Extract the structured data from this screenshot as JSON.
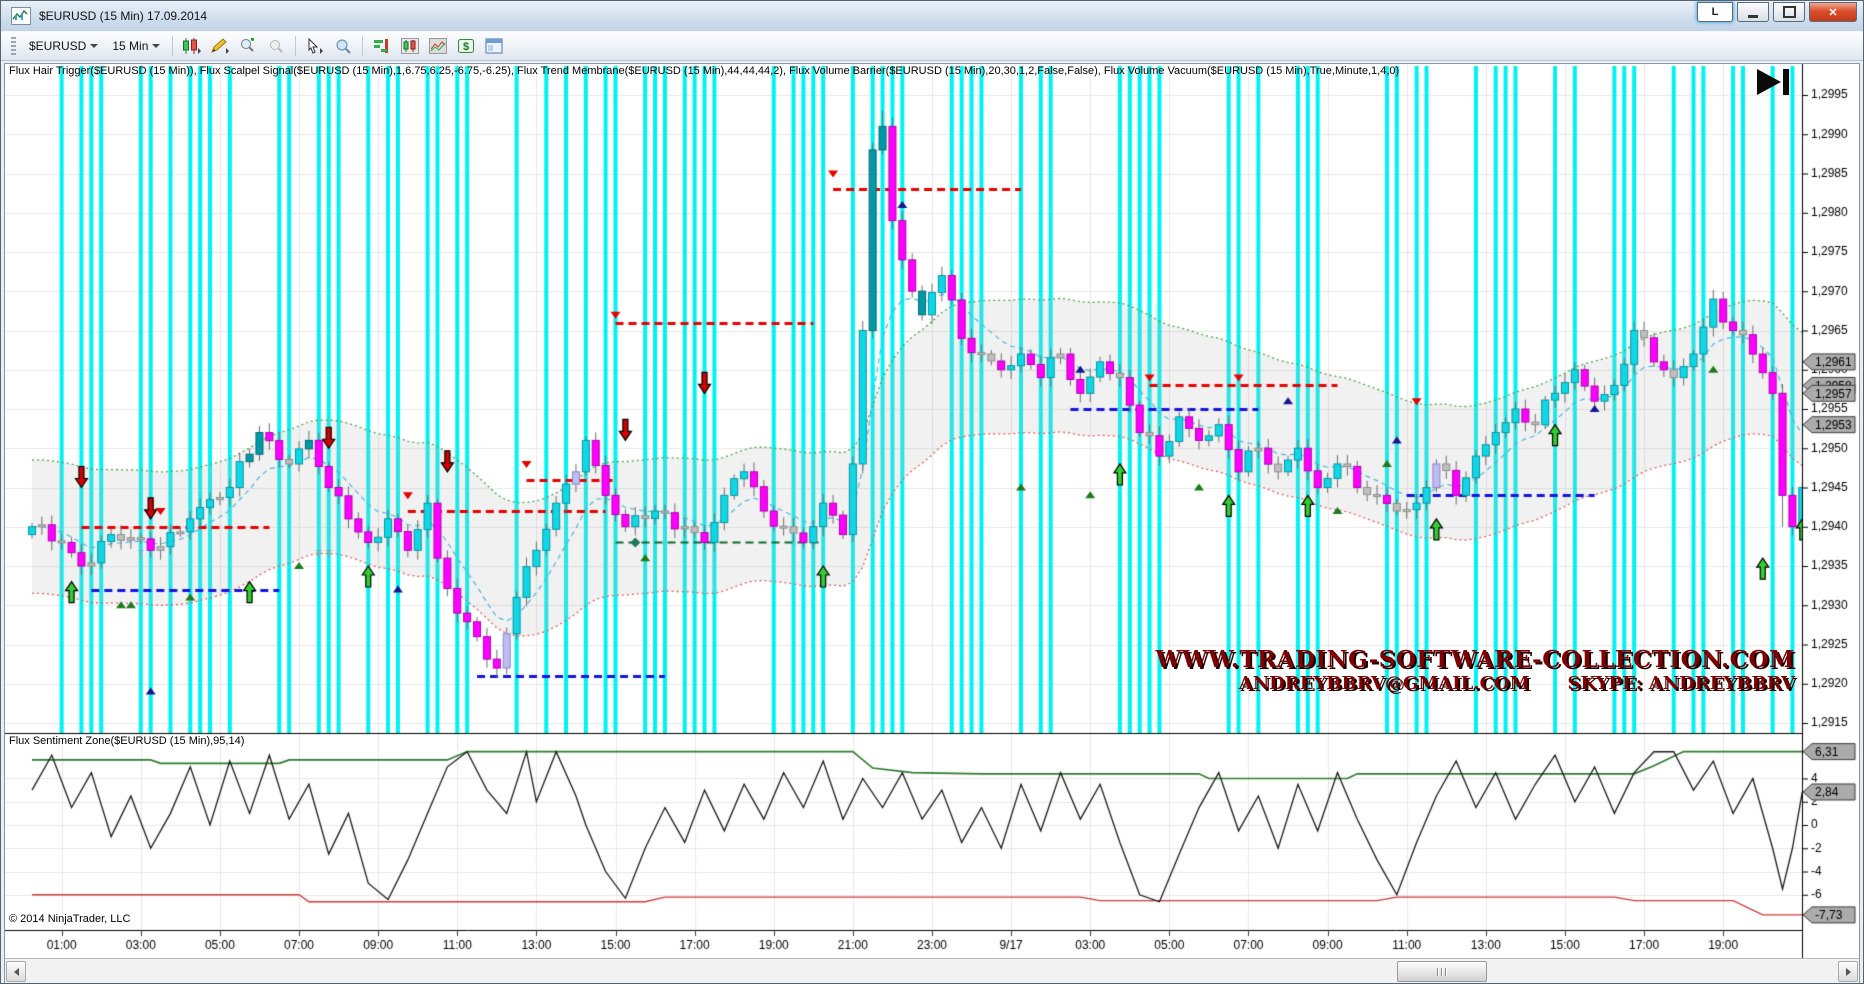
{
  "window": {
    "title": "$EURUSD (15 Min)  17.09.2014",
    "link_button": "L"
  },
  "toolbar": {
    "instrument": "$EURUSD",
    "interval": "15 Min"
  },
  "labels": {
    "indicators": "Flux Hair Trigger($EURUSD (15 Min)), Flux Scalpel Signal($EURUSD (15 Min),1,6.75,6.25,-6.75,-6.25), Flux Trend Membrane($EURUSD (15 Min),44,44,44,2), Flux Volume Barrier($EURUSD (15 Min),20,30,1,2,False,False), Flux Volume Vacuum($EURUSD (15 Min),True,Minute,1,4,0)",
    "subpanel": "Flux Sentiment Zone($EURUSD (15 Min),95,14)",
    "copyright": "© 2014 NinjaTrader, LLC"
  },
  "watermark": {
    "line1": "WWW.TRADING-SOFTWARE-COLLECTION.COM",
    "line2_left": "ANDREYBBRV@GMAIL.COM",
    "line2_right": "SKYPE: ANDREYBBRV"
  },
  "chart_data": {
    "type": "candlestick",
    "instrument": "$EURUSD",
    "interval": "15 Min",
    "bars": 180,
    "price_ticks": [
      [
        "1,2995",
        1.2995
      ],
      [
        "1,2990",
        1.299
      ],
      [
        "1,2985",
        1.2985
      ],
      [
        "1,2980",
        1.298
      ],
      [
        "1,2975",
        1.2975
      ],
      [
        "1,2970",
        1.297
      ],
      [
        "1,2965",
        1.2965
      ],
      [
        "1,2960",
        1.296
      ],
      [
        "1,2955",
        1.2955
      ],
      [
        "1,2950",
        1.295
      ],
      [
        "1,2945",
        1.2945
      ],
      [
        "1,2940",
        1.294
      ],
      [
        "1,2935",
        1.2935
      ],
      [
        "1,2930",
        1.293
      ],
      [
        "1,2925",
        1.2925
      ],
      [
        "1,2920",
        1.292
      ],
      [
        "1,2915",
        1.2915
      ]
    ],
    "axis_boxes_main": [
      [
        "1,2961",
        1.2961
      ],
      [
        "1,2958",
        1.2958
      ],
      [
        "1,2957",
        1.2957
      ],
      [
        "1,2953",
        1.2953
      ]
    ],
    "time_labels": [
      "01:00",
      "03:00",
      "05:00",
      "07:00",
      "09:00",
      "11:00",
      "13:00",
      "15:00",
      "17:00",
      "19:00",
      "21:00",
      "23:00",
      "9/17",
      "03:00",
      "05:00",
      "07:00",
      "09:00",
      "11:00",
      "13:00",
      "15:00",
      "17:00",
      "19:00"
    ],
    "time_label_start_bar": 3,
    "time_label_step": 8,
    "close_anchors": [
      [
        0,
        1.294
      ],
      [
        3,
        1.2938
      ],
      [
        5,
        1.2935
      ],
      [
        8,
        1.2939
      ],
      [
        12,
        1.2937
      ],
      [
        16,
        1.2941
      ],
      [
        20,
        1.2945
      ],
      [
        23,
        1.2952
      ],
      [
        26,
        1.2948
      ],
      [
        28,
        1.2951
      ],
      [
        30,
        1.2945
      ],
      [
        32,
        1.2941
      ],
      [
        34,
        1.2938
      ],
      [
        36,
        1.2941
      ],
      [
        38,
        1.2937
      ],
      [
        40,
        1.2943
      ],
      [
        41,
        1.2936
      ],
      [
        43,
        1.2929
      ],
      [
        45,
        1.2926
      ],
      [
        47,
        1.2922
      ],
      [
        49,
        1.2931
      ],
      [
        51,
        1.2937
      ],
      [
        53,
        1.2943
      ],
      [
        55,
        1.2947
      ],
      [
        56,
        1.2951
      ],
      [
        58,
        1.2944
      ],
      [
        60,
        1.294
      ],
      [
        63,
        1.2942
      ],
      [
        66,
        1.294
      ],
      [
        68,
        1.2938
      ],
      [
        70,
        1.2944
      ],
      [
        72,
        1.2947
      ],
      [
        74,
        1.2942
      ],
      [
        76,
        1.294
      ],
      [
        78,
        1.2938
      ],
      [
        80,
        1.2943
      ],
      [
        82,
        1.2939
      ],
      [
        83,
        1.2948
      ],
      [
        84,
        1.2965
      ],
      [
        85,
        1.2988
      ],
      [
        86,
        1.2991
      ],
      [
        87,
        1.2979
      ],
      [
        88,
        1.2974
      ],
      [
        90,
        1.2967
      ],
      [
        92,
        1.2972
      ],
      [
        94,
        1.2964
      ],
      [
        96,
        1.2962
      ],
      [
        98,
        1.296
      ],
      [
        100,
        1.2962
      ],
      [
        102,
        1.2959
      ],
      [
        104,
        1.2962
      ],
      [
        106,
        1.2957
      ],
      [
        108,
        1.2961
      ],
      [
        110,
        1.2959
      ],
      [
        112,
        1.2952
      ],
      [
        114,
        1.2949
      ],
      [
        116,
        1.2954
      ],
      [
        118,
        1.2951
      ],
      [
        120,
        1.2953
      ],
      [
        122,
        1.2947
      ],
      [
        124,
        1.295
      ],
      [
        126,
        1.2947
      ],
      [
        128,
        1.295
      ],
      [
        130,
        1.2945
      ],
      [
        132,
        1.2948
      ],
      [
        134,
        1.2945
      ],
      [
        136,
        1.2944
      ],
      [
        138,
        1.2942
      ],
      [
        140,
        1.2943
      ],
      [
        142,
        1.2948
      ],
      [
        144,
        1.2944
      ],
      [
        146,
        1.2949
      ],
      [
        148,
        1.2952
      ],
      [
        150,
        1.2955
      ],
      [
        152,
        1.2953
      ],
      [
        154,
        1.2957
      ],
      [
        156,
        1.296
      ],
      [
        158,
        1.2956
      ],
      [
        160,
        1.2958
      ],
      [
        162,
        1.2965
      ],
      [
        164,
        1.2961
      ],
      [
        166,
        1.2959
      ],
      [
        168,
        1.2962
      ],
      [
        170,
        1.2969
      ],
      [
        172,
        1.2965
      ],
      [
        174,
        1.2962
      ],
      [
        176,
        1.2957
      ],
      [
        177,
        1.2944
      ],
      [
        178,
        1.294
      ],
      [
        179,
        1.2945
      ]
    ],
    "wiggle": [
      [
        7e-05,
        1.9,
        0
      ],
      [
        5e-05,
        0.61,
        2
      ]
    ],
    "wick_extra": {
      "47": 1.2921,
      "86": 1.2993,
      "177": 1.294
    },
    "teal_bars": [
      22,
      23,
      28,
      85,
      86,
      90
    ],
    "lavender_bars": [
      48,
      55,
      142
    ],
    "vacuum_bars": [
      3,
      5,
      6,
      7,
      11,
      12,
      14,
      16,
      17,
      18,
      20,
      25,
      26,
      29,
      30,
      31,
      34,
      36,
      37,
      40,
      41,
      43,
      44,
      49,
      52,
      54,
      56,
      58,
      59,
      62,
      63,
      64,
      66,
      67,
      68,
      69,
      75,
      77,
      78,
      79,
      80,
      83,
      85,
      86,
      87,
      88,
      93,
      94,
      95,
      96,
      100,
      102,
      103,
      110,
      111,
      112,
      113,
      114,
      121,
      122,
      124,
      128,
      129,
      130,
      137,
      138,
      140,
      141,
      146,
      148,
      149,
      150,
      154,
      156,
      160,
      161,
      162,
      166,
      168,
      169,
      172,
      173,
      176,
      178
    ],
    "membrane": {
      "period": 24,
      "fast_period": 8,
      "offset": 0.00085
    },
    "dashed_levels": {
      "red": [
        [
          5,
          24,
          1.294
        ],
        [
          38,
          58,
          1.2942
        ],
        [
          50,
          59,
          1.2946
        ],
        [
          59,
          79,
          1.2966
        ],
        [
          81,
          100,
          1.2983
        ],
        [
          113,
          132,
          1.2958
        ]
      ],
      "blue": [
        [
          6,
          25,
          1.2932
        ],
        [
          45,
          64,
          1.2921
        ],
        [
          105,
          124,
          1.2955
        ],
        [
          139,
          158,
          1.2944
        ]
      ],
      "green": [
        [
          59,
          80,
          1.2938
        ]
      ]
    },
    "markers": {
      "arrows_down": [
        [
          5,
          1.2945
        ],
        [
          12,
          1.2941
        ],
        [
          30,
          1.295
        ],
        [
          42,
          1.2947
        ],
        [
          60,
          1.2951
        ],
        [
          68,
          1.2957
        ]
      ],
      "arrows_up": [
        [
          4,
          1.2933
        ],
        [
          22,
          1.2933
        ],
        [
          34,
          1.2935
        ],
        [
          80,
          1.2935
        ],
        [
          110,
          1.2948
        ],
        [
          121,
          1.2944
        ],
        [
          129,
          1.2944
        ],
        [
          142,
          1.2941
        ],
        [
          154,
          1.2953
        ],
        [
          175,
          1.2936
        ],
        [
          179,
          1.2941
        ]
      ],
      "tri_red": [
        [
          13,
          1.2942
        ],
        [
          38,
          1.2944
        ],
        [
          50,
          1.2948
        ],
        [
          59,
          1.2967
        ],
        [
          81,
          1.2985
        ],
        [
          113,
          1.2959
        ],
        [
          122,
          1.2959
        ],
        [
          140,
          1.2956
        ]
      ],
      "tri_green": [
        [
          9,
          1.293
        ],
        [
          10,
          1.293
        ],
        [
          16,
          1.2931
        ],
        [
          27,
          1.2935
        ],
        [
          62,
          1.2936
        ],
        [
          100,
          1.2945
        ],
        [
          107,
          1.2944
        ],
        [
          118,
          1.2945
        ],
        [
          132,
          1.2942
        ],
        [
          137,
          1.2948
        ],
        [
          170,
          1.296
        ]
      ],
      "tri_navy": [
        [
          12,
          1.2919
        ],
        [
          37,
          1.2932
        ],
        [
          88,
          1.2981
        ],
        [
          106,
          1.296
        ],
        [
          127,
          1.2956
        ],
        [
          138,
          1.2951
        ],
        [
          158,
          1.2955
        ]
      ],
      "diamonds": [
        [
          61,
          1.2938
        ]
      ],
      "t_marks": [
        [
          11,
          1.2936
        ],
        [
          29,
          1.2936
        ],
        [
          30,
          1.2936
        ]
      ]
    },
    "sentiment": {
      "ticks": [
        [
          "4",
          4
        ],
        [
          "2",
          2
        ],
        [
          "0",
          0
        ],
        [
          "-2",
          -2
        ],
        [
          "-4",
          -4
        ],
        [
          "-6",
          -6
        ]
      ],
      "axis_boxes": [
        [
          "6,31",
          6.31
        ],
        [
          "2,84",
          2.84
        ],
        [
          "-7,73",
          -7.73
        ]
      ],
      "black": [
        [
          0,
          3
        ],
        [
          2,
          6
        ],
        [
          4,
          1.5
        ],
        [
          6,
          4.5
        ],
        [
          8,
          -1
        ],
        [
          10,
          2.5
        ],
        [
          12,
          -2
        ],
        [
          14,
          1
        ],
        [
          16,
          5
        ],
        [
          18,
          0
        ],
        [
          20,
          5.5
        ],
        [
          22,
          1
        ],
        [
          24,
          6
        ],
        [
          26,
          0.5
        ],
        [
          28,
          3.5
        ],
        [
          30,
          -2.5
        ],
        [
          32,
          1
        ],
        [
          34,
          -5
        ],
        [
          36,
          -6.4
        ],
        [
          38,
          -3
        ],
        [
          40,
          1
        ],
        [
          42,
          5
        ],
        [
          44,
          6.3
        ],
        [
          46,
          3
        ],
        [
          48,
          1
        ],
        [
          50,
          6.3
        ],
        [
          51,
          2
        ],
        [
          53,
          6.3
        ],
        [
          55,
          2.5
        ],
        [
          56,
          0
        ],
        [
          58,
          -4
        ],
        [
          60,
          -6.3
        ],
        [
          62,
          -2
        ],
        [
          64,
          1.5
        ],
        [
          66,
          -1.5
        ],
        [
          68,
          3
        ],
        [
          70,
          -0.5
        ],
        [
          72,
          3.5
        ],
        [
          74,
          0.5
        ],
        [
          76,
          4.5
        ],
        [
          78,
          1.5
        ],
        [
          80,
          5.5
        ],
        [
          82,
          0.5
        ],
        [
          84,
          4
        ],
        [
          86,
          1.5
        ],
        [
          88,
          4.5
        ],
        [
          90,
          0.5
        ],
        [
          92,
          3
        ],
        [
          94,
          -1.5
        ],
        [
          96,
          1.5
        ],
        [
          98,
          -2
        ],
        [
          100,
          3.5
        ],
        [
          102,
          -0.5
        ],
        [
          104,
          4.5
        ],
        [
          106,
          0.5
        ],
        [
          108,
          3.5
        ],
        [
          110,
          -1.5
        ],
        [
          112,
          -6
        ],
        [
          114,
          -6.6
        ],
        [
          116,
          -2.5
        ],
        [
          118,
          1.5
        ],
        [
          120,
          4.5
        ],
        [
          122,
          -0.5
        ],
        [
          124,
          2.5
        ],
        [
          126,
          -2
        ],
        [
          128,
          3.5
        ],
        [
          130,
          -0.5
        ],
        [
          132,
          4.5
        ],
        [
          134,
          0.5
        ],
        [
          136,
          -3
        ],
        [
          138,
          -6
        ],
        [
          140,
          -1.5
        ],
        [
          142,
          2.5
        ],
        [
          144,
          5.5
        ],
        [
          146,
          1.5
        ],
        [
          148,
          4.5
        ],
        [
          150,
          0.5
        ],
        [
          152,
          3.5
        ],
        [
          154,
          6
        ],
        [
          156,
          2
        ],
        [
          158,
          5
        ],
        [
          160,
          1
        ],
        [
          162,
          4.5
        ],
        [
          164,
          6.3
        ],
        [
          166,
          6.3
        ],
        [
          168,
          3
        ],
        [
          170,
          5.5
        ],
        [
          172,
          1
        ],
        [
          174,
          4
        ],
        [
          176,
          -2
        ],
        [
          177,
          -5.5
        ],
        [
          178,
          -2
        ],
        [
          179,
          2.84
        ]
      ],
      "green_steps": [
        [
          0,
          5.6
        ],
        [
          12,
          5.6
        ],
        [
          13,
          5.3
        ],
        [
          25,
          5.3
        ],
        [
          26,
          5.6
        ],
        [
          42,
          5.6
        ],
        [
          44,
          6.31
        ],
        [
          83,
          6.31
        ],
        [
          85,
          4.9
        ],
        [
          89,
          4.5
        ],
        [
          96,
          4.4
        ],
        [
          118,
          4.4
        ],
        [
          119,
          4.0
        ],
        [
          133,
          4.0
        ],
        [
          134,
          4.4
        ],
        [
          162,
          4.4
        ],
        [
          164,
          5.1
        ],
        [
          167,
          6.31
        ],
        [
          179,
          6.31
        ]
      ],
      "red_steps": [
        [
          0,
          -6.0
        ],
        [
          27,
          -6.0
        ],
        [
          28,
          -6.6
        ],
        [
          62,
          -6.6
        ],
        [
          64,
          -6.2
        ],
        [
          106,
          -6.2
        ],
        [
          108,
          -6.5
        ],
        [
          136,
          -6.5
        ],
        [
          138,
          -6.2
        ],
        [
          160,
          -6.2
        ],
        [
          162,
          -6.5
        ],
        [
          172,
          -6.5
        ],
        [
          175,
          -7.73
        ],
        [
          179,
          -7.73
        ]
      ]
    },
    "colors": {
      "up": "#0FD8E6",
      "up_border": "#0794a2",
      "teal": "#009AA6",
      "down": "#FF00FF",
      "down_border": "#B000B0",
      "neutral": "#BFBFBF",
      "neutral_border": "#8f8f8f",
      "lavender": "#BDBDF2",
      "vacuum": "#00F2F2",
      "grid": "#E7E7E7",
      "wick": "#6f6f6f",
      "dash_red": "#E80000",
      "dash_blue": "#1414E0",
      "dash_green": "#0E6B2E",
      "membrane_fill": "rgba(185,185,185,0.20)",
      "membrane_up": "#4EA34E",
      "membrane_dn": "#E06060",
      "membrane_mid": "#4FB6E0",
      "arrow_up": "#30CE30",
      "arrow_down": "#D40000",
      "tri_red": "#E40000",
      "tri_green": "#1E7A1E",
      "tri_navy": "#16168E",
      "diamond": "#1E7A5A",
      "sent_black": "#1c1c1c",
      "sent_green": "#2F7A2F",
      "sent_red": "#CE3B3B",
      "axis_box_fill": "#ABABAB",
      "axis_box_border": "#3c3c3c"
    }
  }
}
